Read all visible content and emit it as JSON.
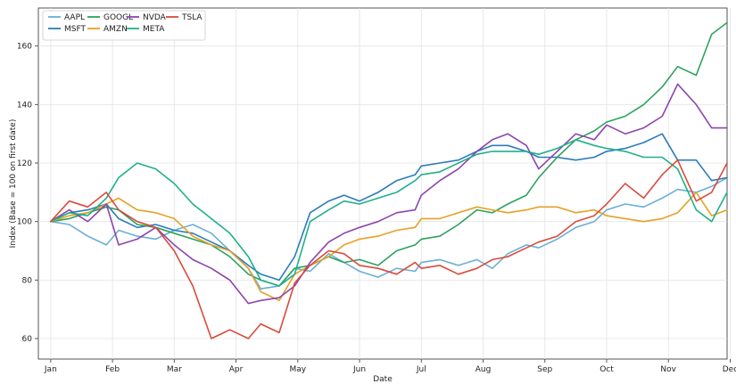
{
  "chart_data": {
    "type": "line",
    "title": "",
    "xlabel": "Date",
    "ylabel": "Index (Base = 100 on first date)",
    "xlim": [
      -0.2,
      10.95
    ],
    "ylim": [
      53,
      173
    ],
    "grid": true,
    "legend_position": "top-left",
    "x_ticks": [
      {
        "label": "Jan",
        "value": 0
      },
      {
        "label": "Feb",
        "value": 1
      },
      {
        "label": "Mar",
        "value": 2
      },
      {
        "label": "Apr",
        "value": 3
      },
      {
        "label": "May",
        "value": 4
      },
      {
        "label": "Jun",
        "value": 5
      },
      {
        "label": "Jul",
        "value": 6
      },
      {
        "label": "Aug",
        "value": 7
      },
      {
        "label": "Sep",
        "value": 8
      },
      {
        "label": "Oct",
        "value": 9
      },
      {
        "label": "Nov",
        "value": 10
      },
      {
        "label": "Dec",
        "value": 11
      }
    ],
    "y_ticks": [
      60,
      80,
      100,
      120,
      140,
      160
    ],
    "series": [
      {
        "name": "AAPL",
        "color": "#6baed6",
        "points": [
          [
            0,
            100
          ],
          [
            0.3,
            99
          ],
          [
            0.6,
            95
          ],
          [
            0.9,
            92
          ],
          [
            1.1,
            97
          ],
          [
            1.4,
            95
          ],
          [
            1.7,
            94
          ],
          [
            2.0,
            97
          ],
          [
            2.3,
            99
          ],
          [
            2.6,
            96
          ],
          [
            2.9,
            90
          ],
          [
            3.2,
            84
          ],
          [
            3.4,
            77
          ],
          [
            3.7,
            78
          ],
          [
            3.95,
            84
          ],
          [
            4.2,
            83
          ],
          [
            4.5,
            89
          ],
          [
            4.75,
            86
          ],
          [
            5.0,
            83
          ],
          [
            5.3,
            81
          ],
          [
            5.6,
            84
          ],
          [
            5.9,
            83
          ],
          [
            6.0,
            86
          ],
          [
            6.3,
            87
          ],
          [
            6.6,
            85
          ],
          [
            6.9,
            87
          ],
          [
            7.15,
            84
          ],
          [
            7.4,
            89
          ],
          [
            7.7,
            92
          ],
          [
            7.9,
            91
          ],
          [
            8.2,
            94
          ],
          [
            8.5,
            98
          ],
          [
            8.8,
            100
          ],
          [
            9.0,
            104
          ],
          [
            9.3,
            106
          ],
          [
            9.6,
            105
          ],
          [
            9.9,
            108
          ],
          [
            10.15,
            111
          ],
          [
            10.45,
            110
          ],
          [
            10.7,
            112
          ],
          [
            10.95,
            115
          ]
        ]
      },
      {
        "name": "MSFT",
        "color": "#2b7bba",
        "points": [
          [
            0,
            100
          ],
          [
            0.3,
            103
          ],
          [
            0.6,
            104
          ],
          [
            0.9,
            106
          ],
          [
            1.1,
            101
          ],
          [
            1.4,
            98
          ],
          [
            1.7,
            99
          ],
          [
            2.0,
            97
          ],
          [
            2.3,
            96
          ],
          [
            2.6,
            93
          ],
          [
            2.9,
            90
          ],
          [
            3.2,
            85
          ],
          [
            3.4,
            82
          ],
          [
            3.7,
            80
          ],
          [
            3.95,
            88
          ],
          [
            4.2,
            103
          ],
          [
            4.5,
            107
          ],
          [
            4.75,
            109
          ],
          [
            5.0,
            107
          ],
          [
            5.3,
            110
          ],
          [
            5.6,
            114
          ],
          [
            5.9,
            116
          ],
          [
            6.0,
            119
          ],
          [
            6.3,
            120
          ],
          [
            6.6,
            121
          ],
          [
            6.9,
            124
          ],
          [
            7.15,
            126
          ],
          [
            7.4,
            126
          ],
          [
            7.7,
            124
          ],
          [
            7.9,
            122
          ],
          [
            8.2,
            122
          ],
          [
            8.5,
            121
          ],
          [
            8.8,
            122
          ],
          [
            9.0,
            124
          ],
          [
            9.3,
            125
          ],
          [
            9.6,
            127
          ],
          [
            9.9,
            130
          ],
          [
            10.15,
            121
          ],
          [
            10.45,
            121
          ],
          [
            10.7,
            114
          ],
          [
            10.95,
            115
          ]
        ]
      },
      {
        "name": "GOOGL",
        "color": "#2ca25f",
        "points": [
          [
            0,
            100
          ],
          [
            0.3,
            101
          ],
          [
            0.6,
            103
          ],
          [
            0.9,
            105
          ],
          [
            1.1,
            104
          ],
          [
            1.4,
            99
          ],
          [
            1.7,
            98
          ],
          [
            2.0,
            96
          ],
          [
            2.3,
            94
          ],
          [
            2.6,
            92
          ],
          [
            2.9,
            88
          ],
          [
            3.2,
            82
          ],
          [
            3.4,
            80
          ],
          [
            3.7,
            78
          ],
          [
            3.95,
            84
          ],
          [
            4.2,
            85
          ],
          [
            4.5,
            88
          ],
          [
            4.75,
            86
          ],
          [
            5.0,
            87
          ],
          [
            5.3,
            85
          ],
          [
            5.6,
            90
          ],
          [
            5.9,
            92
          ],
          [
            6.0,
            94
          ],
          [
            6.3,
            95
          ],
          [
            6.6,
            99
          ],
          [
            6.9,
            104
          ],
          [
            7.15,
            103
          ],
          [
            7.4,
            106
          ],
          [
            7.7,
            109
          ],
          [
            7.9,
            115
          ],
          [
            8.2,
            122
          ],
          [
            8.5,
            128
          ],
          [
            8.8,
            131
          ],
          [
            9.0,
            134
          ],
          [
            9.3,
            136
          ],
          [
            9.6,
            140
          ],
          [
            9.9,
            146
          ],
          [
            10.15,
            153
          ],
          [
            10.45,
            150
          ],
          [
            10.7,
            164
          ],
          [
            10.95,
            168
          ]
        ]
      },
      {
        "name": "AMZN",
        "color": "#e6a125",
        "points": [
          [
            0,
            100
          ],
          [
            0.3,
            102
          ],
          [
            0.6,
            103
          ],
          [
            0.9,
            106
          ],
          [
            1.1,
            108
          ],
          [
            1.4,
            104
          ],
          [
            1.7,
            103
          ],
          [
            2.0,
            101
          ],
          [
            2.3,
            95
          ],
          [
            2.6,
            92
          ],
          [
            2.9,
            90
          ],
          [
            3.2,
            84
          ],
          [
            3.4,
            76
          ],
          [
            3.7,
            73
          ],
          [
            3.95,
            82
          ],
          [
            4.2,
            85
          ],
          [
            4.5,
            88
          ],
          [
            4.75,
            92
          ],
          [
            5.0,
            94
          ],
          [
            5.3,
            95
          ],
          [
            5.6,
            97
          ],
          [
            5.9,
            98
          ],
          [
            6.0,
            101
          ],
          [
            6.3,
            101
          ],
          [
            6.6,
            103
          ],
          [
            6.9,
            105
          ],
          [
            7.15,
            104
          ],
          [
            7.4,
            103
          ],
          [
            7.7,
            104
          ],
          [
            7.9,
            105
          ],
          [
            8.2,
            105
          ],
          [
            8.5,
            103
          ],
          [
            8.8,
            104
          ],
          [
            9.0,
            102
          ],
          [
            9.3,
            101
          ],
          [
            9.6,
            100
          ],
          [
            9.9,
            101
          ],
          [
            10.15,
            103
          ],
          [
            10.45,
            110
          ],
          [
            10.7,
            102
          ],
          [
            10.95,
            104
          ]
        ]
      },
      {
        "name": "NVDA",
        "color": "#8e44ad",
        "points": [
          [
            0,
            100
          ],
          [
            0.3,
            104
          ],
          [
            0.6,
            100
          ],
          [
            0.9,
            106
          ],
          [
            1.1,
            92
          ],
          [
            1.4,
            94
          ],
          [
            1.7,
            98
          ],
          [
            2.0,
            92
          ],
          [
            2.3,
            87
          ],
          [
            2.6,
            84
          ],
          [
            2.9,
            80
          ],
          [
            3.2,
            72
          ],
          [
            3.4,
            73
          ],
          [
            3.7,
            74
          ],
          [
            3.95,
            78
          ],
          [
            4.2,
            86
          ],
          [
            4.5,
            93
          ],
          [
            4.75,
            96
          ],
          [
            5.0,
            98
          ],
          [
            5.3,
            100
          ],
          [
            5.6,
            103
          ],
          [
            5.9,
            104
          ],
          [
            6.0,
            109
          ],
          [
            6.3,
            114
          ],
          [
            6.6,
            118
          ],
          [
            6.9,
            124
          ],
          [
            7.15,
            128
          ],
          [
            7.4,
            130
          ],
          [
            7.7,
            126
          ],
          [
            7.9,
            118
          ],
          [
            8.2,
            124
          ],
          [
            8.5,
            130
          ],
          [
            8.8,
            128
          ],
          [
            9.0,
            133
          ],
          [
            9.3,
            130
          ],
          [
            9.6,
            132
          ],
          [
            9.9,
            136
          ],
          [
            10.15,
            147
          ],
          [
            10.45,
            140
          ],
          [
            10.7,
            132
          ],
          [
            10.95,
            132
          ]
        ]
      },
      {
        "name": "META",
        "color": "#1fb08a",
        "points": [
          [
            0,
            100
          ],
          [
            0.3,
            103
          ],
          [
            0.6,
            102
          ],
          [
            0.9,
            108
          ],
          [
            1.1,
            115
          ],
          [
            1.4,
            120
          ],
          [
            1.7,
            118
          ],
          [
            2.0,
            113
          ],
          [
            2.3,
            106
          ],
          [
            2.6,
            101
          ],
          [
            2.9,
            96
          ],
          [
            3.2,
            88
          ],
          [
            3.4,
            80
          ],
          [
            3.7,
            78
          ],
          [
            3.95,
            82
          ],
          [
            4.2,
            100
          ],
          [
            4.5,
            104
          ],
          [
            4.75,
            107
          ],
          [
            5.0,
            106
          ],
          [
            5.3,
            108
          ],
          [
            5.6,
            110
          ],
          [
            5.9,
            114
          ],
          [
            6.0,
            116
          ],
          [
            6.3,
            117
          ],
          [
            6.6,
            120
          ],
          [
            6.9,
            123
          ],
          [
            7.15,
            124
          ],
          [
            7.4,
            124
          ],
          [
            7.7,
            124
          ],
          [
            7.9,
            123
          ],
          [
            8.2,
            125
          ],
          [
            8.5,
            128
          ],
          [
            8.8,
            126
          ],
          [
            9.0,
            125
          ],
          [
            9.3,
            124
          ],
          [
            9.6,
            122
          ],
          [
            9.9,
            122
          ],
          [
            10.15,
            118
          ],
          [
            10.45,
            104
          ],
          [
            10.7,
            100
          ],
          [
            10.95,
            110
          ]
        ]
      },
      {
        "name": "TSLA",
        "color": "#d94b3c",
        "points": [
          [
            0,
            100
          ],
          [
            0.3,
            107
          ],
          [
            0.6,
            105
          ],
          [
            0.9,
            110
          ],
          [
            1.1,
            104
          ],
          [
            1.4,
            100
          ],
          [
            1.7,
            98
          ],
          [
            2.0,
            90
          ],
          [
            2.3,
            78
          ],
          [
            2.6,
            60
          ],
          [
            2.9,
            63
          ],
          [
            3.2,
            60
          ],
          [
            3.4,
            65
          ],
          [
            3.7,
            62
          ],
          [
            3.95,
            79
          ],
          [
            4.2,
            85
          ],
          [
            4.5,
            90
          ],
          [
            4.75,
            89
          ],
          [
            5.0,
            85
          ],
          [
            5.3,
            84
          ],
          [
            5.6,
            82
          ],
          [
            5.9,
            86
          ],
          [
            6.0,
            84
          ],
          [
            6.3,
            85
          ],
          [
            6.6,
            82
          ],
          [
            6.9,
            84
          ],
          [
            7.15,
            87
          ],
          [
            7.4,
            88
          ],
          [
            7.7,
            91
          ],
          [
            7.9,
            93
          ],
          [
            8.2,
            95
          ],
          [
            8.5,
            100
          ],
          [
            8.8,
            102
          ],
          [
            9.0,
            106
          ],
          [
            9.3,
            113
          ],
          [
            9.6,
            108
          ],
          [
            9.9,
            116
          ],
          [
            10.15,
            121
          ],
          [
            10.45,
            107
          ],
          [
            10.7,
            110
          ],
          [
            10.95,
            120
          ]
        ]
      }
    ]
  }
}
